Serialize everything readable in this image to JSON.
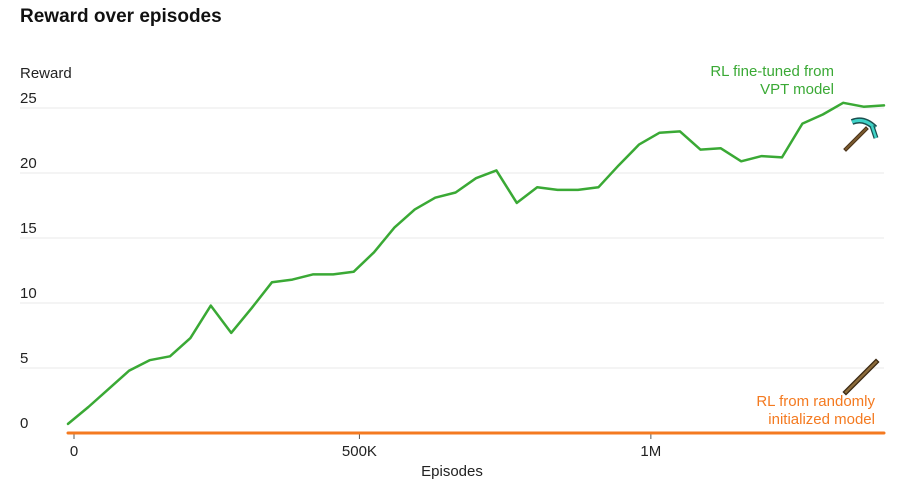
{
  "chart_data": {
    "type": "line",
    "title": "Reward over episodes",
    "ylabel": "Reward",
    "xlabel": "Episodes",
    "ylim": [
      0,
      25
    ],
    "xlim": [
      0,
      1400000
    ],
    "y_ticks": [
      {
        "value": 0,
        "label": "0"
      },
      {
        "value": 5,
        "label": "5"
      },
      {
        "value": 10,
        "label": "10"
      },
      {
        "value": 15,
        "label": "15"
      },
      {
        "value": 20,
        "label": "20"
      },
      {
        "value": 25,
        "label": "25"
      }
    ],
    "x_ticks": [
      {
        "value": 0,
        "label": "0"
      },
      {
        "value": 500000,
        "label": "500K"
      },
      {
        "value": 1000000,
        "label": "1M"
      }
    ],
    "grid": true,
    "series": [
      {
        "name": "RL fine-tuned from VPT model",
        "color": "#3aa935",
        "icon": "diamond-pickaxe-icon",
        "x": [
          0,
          35000,
          70000,
          105000,
          140000,
          175000,
          210000,
          245000,
          280000,
          315000,
          350000,
          385000,
          420000,
          455000,
          490000,
          525000,
          560000,
          595000,
          630000,
          665000,
          700000,
          735000,
          770000,
          805000,
          840000,
          875000,
          910000,
          945000,
          980000,
          1015000,
          1050000,
          1085000,
          1120000,
          1155000,
          1190000,
          1225000,
          1260000,
          1295000,
          1330000,
          1365000,
          1400000
        ],
        "y": [
          0.7,
          2.0,
          3.4,
          4.8,
          5.6,
          5.9,
          7.3,
          9.8,
          7.7,
          9.6,
          11.6,
          11.8,
          12.2,
          12.2,
          12.4,
          13.9,
          15.8,
          17.2,
          18.1,
          18.5,
          19.6,
          20.2,
          17.7,
          18.9,
          18.7,
          18.7,
          18.9,
          20.6,
          22.2,
          23.1,
          23.2,
          21.8,
          21.9,
          20.9,
          21.3,
          21.2,
          23.8,
          24.5,
          25.4,
          25.1,
          25.2
        ]
      },
      {
        "name": "RL from randomly initialized model",
        "color": "#f47a20",
        "icon": "wooden-pickaxe-icon",
        "x": [
          0,
          1400000
        ],
        "y": [
          0,
          0
        ]
      }
    ],
    "annotations": [
      {
        "series": 0,
        "lines": [
          "RL fine-tuned from",
          "VPT model"
        ],
        "color": "#3aa935"
      },
      {
        "series": 1,
        "lines": [
          "RL from randomly",
          "initialized model"
        ],
        "color": "#f47a20"
      }
    ]
  }
}
